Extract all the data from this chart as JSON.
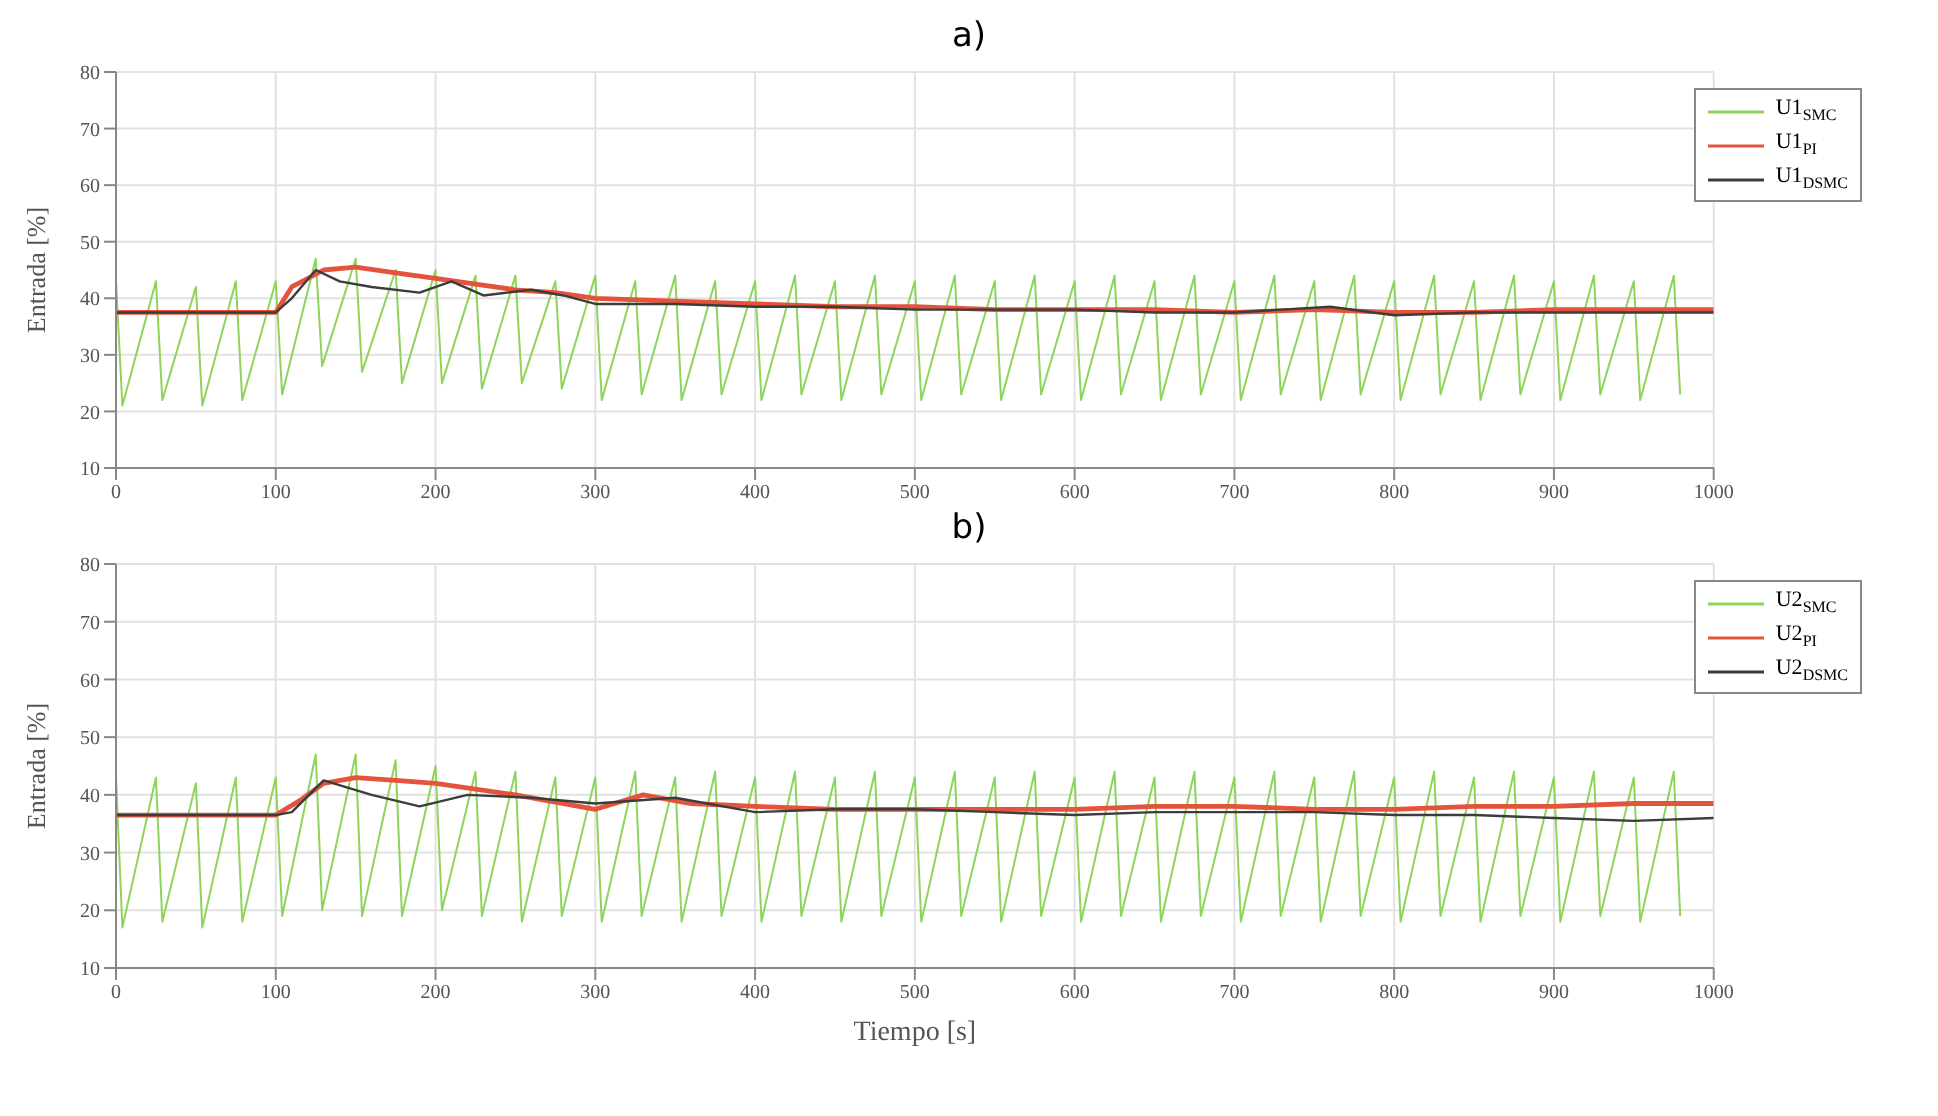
{
  "chart_data": [
    {
      "type": "line",
      "title": "a)",
      "ylabel": "Entrada [%]",
      "xlim": [
        0,
        1000
      ],
      "xticks": [
        0,
        100,
        200,
        300,
        400,
        500,
        600,
        700,
        800,
        900,
        1000
      ],
      "ylim": [
        10,
        80
      ],
      "yticks": [
        10,
        20,
        30,
        40,
        50,
        60,
        70,
        80
      ],
      "grid": true,
      "legend": "top right",
      "series": [
        {
          "name": "U1$_{SMC}$",
          "color": "#8ed45a",
          "x": [
            0,
            4,
            25,
            29,
            50,
            54,
            75,
            79,
            100,
            104,
            125,
            129,
            150,
            154,
            175,
            179,
            200,
            204,
            225,
            229,
            250,
            254,
            275,
            279,
            300,
            304,
            325,
            329,
            350,
            354,
            375,
            379,
            400,
            404,
            425,
            429,
            450,
            454,
            475,
            479,
            500,
            504,
            525,
            529,
            550,
            554,
            575,
            579,
            600,
            604,
            625,
            629,
            650,
            654,
            675,
            679,
            700,
            704,
            725,
            729,
            750,
            754,
            775,
            779,
            800,
            804,
            825,
            829,
            850,
            854,
            875,
            879,
            900,
            904,
            925,
            929,
            950,
            954,
            975,
            979
          ],
          "values": [
            43,
            21,
            43,
            22,
            42,
            21,
            43,
            22,
            43,
            23,
            47,
            28,
            47,
            27,
            45,
            25,
            45,
            25,
            44,
            24,
            44,
            25,
            43,
            24,
            44,
            22,
            43,
            23,
            44,
            22,
            43,
            23,
            43,
            22,
            44,
            23,
            43,
            22,
            44,
            23,
            43,
            22,
            44,
            23,
            43,
            22,
            44,
            23,
            43,
            22,
            44,
            23,
            43,
            22,
            44,
            23,
            43,
            22,
            44,
            23,
            43,
            22,
            44,
            23,
            43,
            22,
            44,
            23,
            43,
            22,
            44,
            23,
            43,
            22,
            44,
            23,
            43,
            22,
            44,
            23
          ]
        },
        {
          "name": "U1$_{PI}$",
          "color": "#e5533d",
          "x": [
            0,
            50,
            100,
            110,
            130,
            150,
            175,
            200,
            225,
            250,
            275,
            300,
            350,
            400,
            450,
            500,
            550,
            600,
            650,
            700,
            750,
            800,
            850,
            900,
            950,
            1000
          ],
          "values": [
            37.5,
            37.5,
            37.5,
            42,
            45,
            45.5,
            44.5,
            43.5,
            42.5,
            41.5,
            41,
            40,
            39.5,
            39,
            38.5,
            38.5,
            38,
            38,
            38,
            37.5,
            38,
            37.5,
            37.5,
            38,
            38,
            38
          ]
        },
        {
          "name": "U1$_{DSMC}$",
          "color": "#3c3c3c",
          "x": [
            0,
            50,
            100,
            110,
            125,
            140,
            160,
            190,
            210,
            230,
            260,
            280,
            300,
            350,
            400,
            450,
            500,
            550,
            600,
            650,
            700,
            760,
            800,
            850,
            900,
            950,
            1000
          ],
          "values": [
            37.5,
            37.5,
            37.5,
            40,
            45,
            43,
            42,
            41,
            43,
            40.5,
            41.5,
            40.5,
            39,
            39,
            38.5,
            38.5,
            38,
            38,
            38,
            37.5,
            37.5,
            38.5,
            37,
            37.5,
            37.5,
            37.5,
            37.5
          ]
        }
      ]
    },
    {
      "type": "line",
      "title": "b)",
      "xlabel": "Tiempo [s]",
      "ylabel": "Entrada [%]",
      "xlim": [
        0,
        1000
      ],
      "xticks": [
        0,
        100,
        200,
        300,
        400,
        500,
        600,
        700,
        800,
        900,
        1000
      ],
      "ylim": [
        10,
        80
      ],
      "yticks": [
        10,
        20,
        30,
        40,
        50,
        60,
        70,
        80
      ],
      "grid": true,
      "legend": "top right",
      "series": [
        {
          "name": "U2$_{SMC}$",
          "color": "#8ed45a",
          "x": [
            0,
            4,
            25,
            29,
            50,
            54,
            75,
            79,
            100,
            104,
            125,
            129,
            150,
            154,
            175,
            179,
            200,
            204,
            225,
            229,
            250,
            254,
            275,
            279,
            300,
            304,
            325,
            329,
            350,
            354,
            375,
            379,
            400,
            404,
            425,
            429,
            450,
            454,
            475,
            479,
            500,
            504,
            525,
            529,
            550,
            554,
            575,
            579,
            600,
            604,
            625,
            629,
            650,
            654,
            675,
            679,
            700,
            704,
            725,
            729,
            750,
            754,
            775,
            779,
            800,
            804,
            825,
            829,
            850,
            854,
            875,
            879,
            900,
            904,
            925,
            929,
            950,
            954,
            975,
            979
          ],
          "values": [
            43,
            17,
            43,
            18,
            42,
            17,
            43,
            18,
            43,
            19,
            47,
            20,
            47,
            19,
            46,
            19,
            45,
            20,
            44,
            19,
            44,
            18,
            43,
            19,
            43,
            18,
            44,
            19,
            43,
            18,
            44,
            19,
            43,
            18,
            44,
            19,
            43,
            18,
            44,
            19,
            43,
            18,
            44,
            19,
            43,
            18,
            44,
            19,
            43,
            18,
            44,
            19,
            43,
            18,
            44,
            19,
            43,
            18,
            44,
            19,
            43,
            18,
            44,
            19,
            43,
            18,
            44,
            19,
            43,
            18,
            44,
            19,
            43,
            18,
            44,
            19,
            43,
            18,
            44,
            19
          ]
        },
        {
          "name": "U2$_{PI}$",
          "color": "#e5533d",
          "x": [
            0,
            50,
            100,
            115,
            130,
            150,
            175,
            200,
            250,
            300,
            330,
            360,
            400,
            450,
            500,
            550,
            600,
            650,
            700,
            750,
            800,
            850,
            900,
            950,
            1000
          ],
          "values": [
            36.5,
            36.5,
            36.5,
            39,
            42,
            43,
            42.5,
            42,
            40,
            37.5,
            40,
            38.5,
            38,
            37.5,
            37.5,
            37.5,
            37.5,
            38,
            38,
            37.5,
            37.5,
            38,
            38,
            38.5,
            38.5
          ]
        },
        {
          "name": "U2$_{DSMC}$",
          "color": "#3c3c3c",
          "x": [
            0,
            50,
            100,
            110,
            130,
            160,
            190,
            220,
            260,
            300,
            350,
            400,
            450,
            500,
            550,
            600,
            650,
            700,
            750,
            800,
            850,
            900,
            950,
            1000
          ],
          "values": [
            36.5,
            36.5,
            36.5,
            37,
            42.5,
            40,
            38,
            40,
            39.5,
            38.5,
            39.5,
            37,
            37.5,
            37.5,
            37,
            36.5,
            37,
            37,
            37,
            36.5,
            36.5,
            36,
            35.5,
            36
          ]
        }
      ]
    }
  ]
}
